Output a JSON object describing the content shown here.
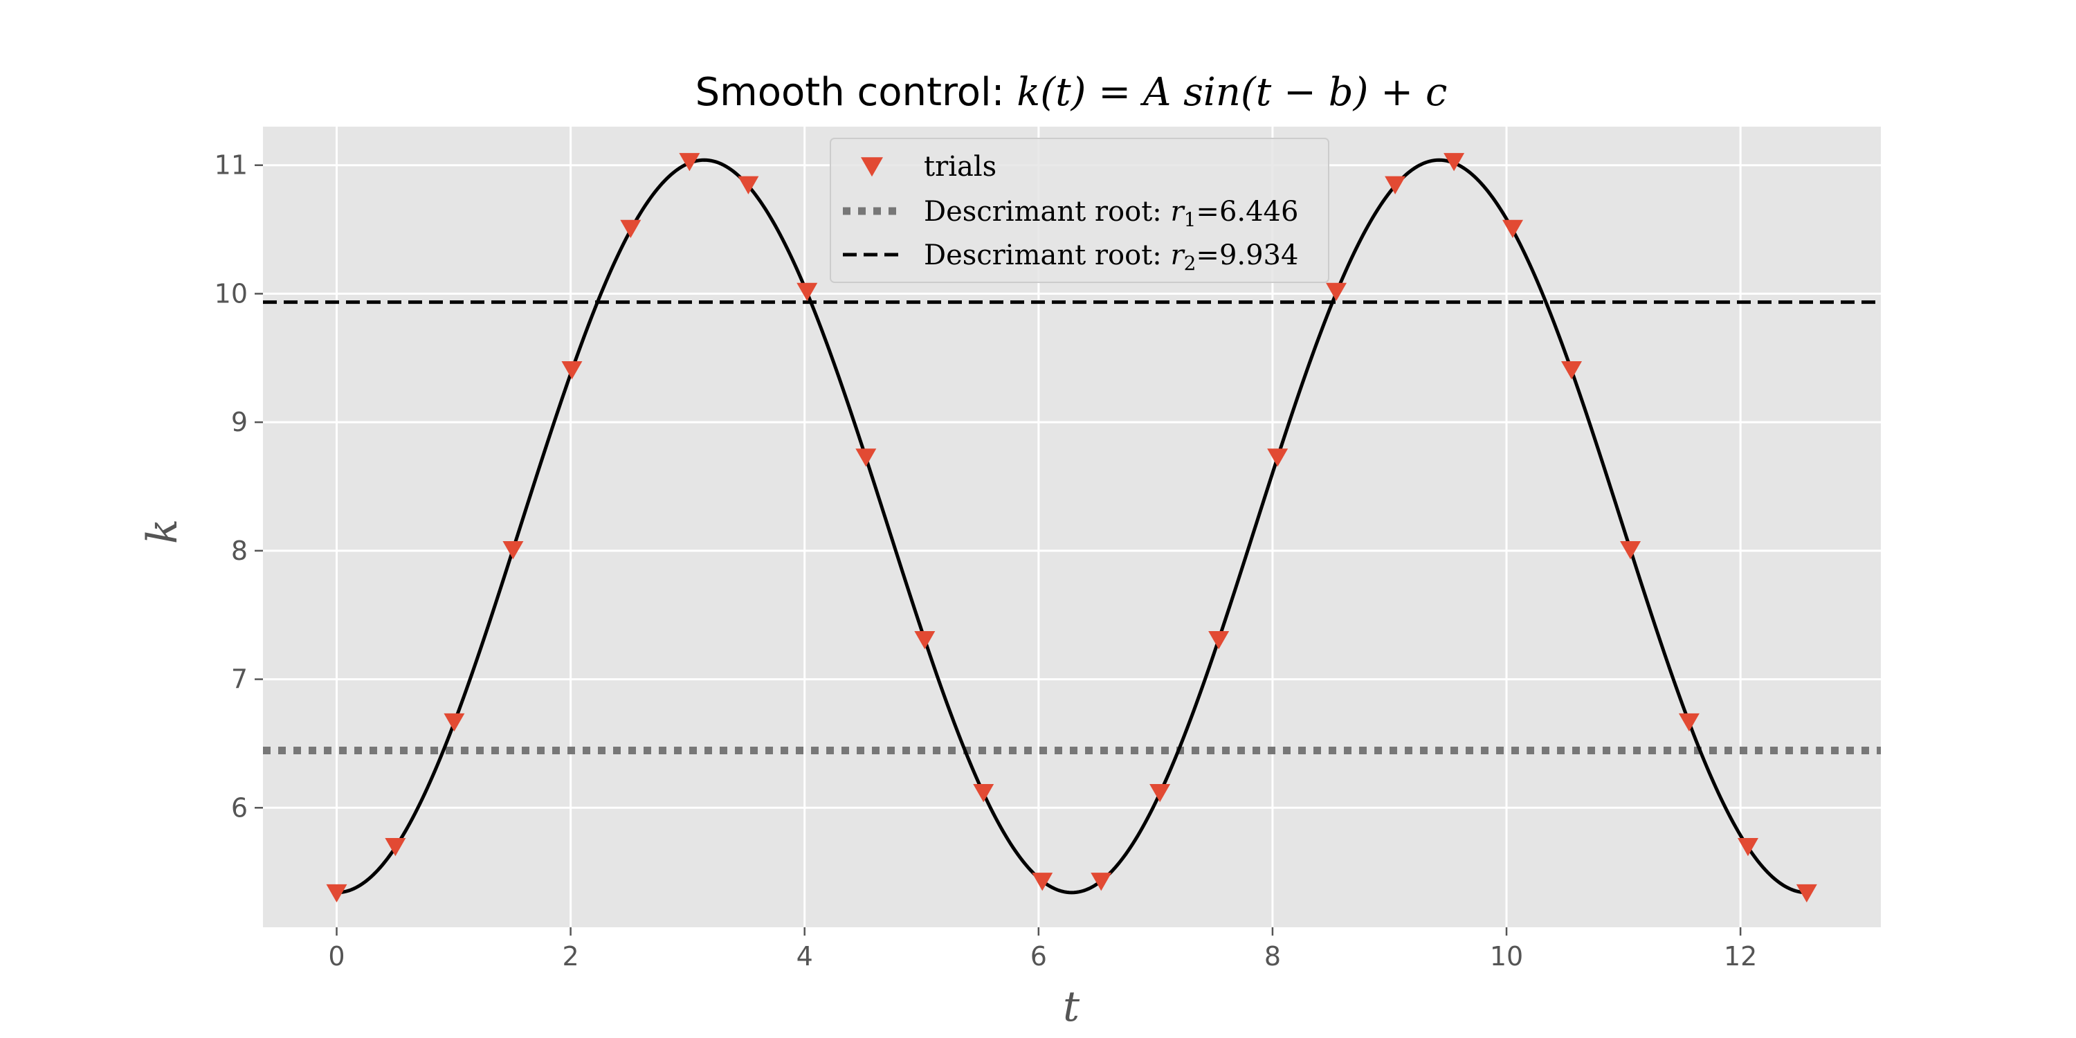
{
  "chart_data": {
    "type": "line",
    "title": {
      "prefix": "Smooth control: ",
      "formula": "k(t) = A sin(t − b) + c"
    },
    "xlabel": "t",
    "ylabel": "k",
    "xlim": [
      -0.63,
      13.2
    ],
    "ylim": [
      5.07,
      11.3
    ],
    "xticks": [
      0,
      2,
      4,
      6,
      8,
      10,
      12
    ],
    "yticks": [
      6,
      7,
      8,
      9,
      10,
      11
    ],
    "grid": true,
    "legend_position": "top-center",
    "curve": {
      "function": "A*sin(t-b)+c",
      "A": 2.85,
      "b": 1.5708,
      "c": 8.19,
      "t_range": [
        0,
        12.566
      ]
    },
    "series": [
      {
        "name": "trials",
        "type": "scatter",
        "marker": "triangle-down",
        "color": "#E24A33",
        "x": [
          0,
          0.502,
          1.005,
          1.508,
          2.011,
          2.513,
          3.016,
          3.519,
          4.021,
          4.524,
          5.027,
          5.529,
          6.032,
          6.535,
          7.037,
          7.54,
          8.043,
          8.545,
          9.048,
          9.551,
          10.053,
          10.556,
          11.059,
          11.561,
          12.064,
          12.566
        ],
        "y": [
          5.34,
          5.7,
          6.67,
          8.01,
          9.41,
          10.51,
          11.03,
          10.85,
          10.02,
          8.73,
          7.31,
          6.12,
          5.43,
          5.43,
          6.12,
          7.31,
          8.73,
          10.02,
          10.85,
          11.03,
          10.51,
          9.41,
          8.01,
          6.67,
          5.7,
          5.34
        ]
      },
      {
        "name": "Descrimant root: r1=6.446",
        "label_parts": {
          "prefix": "Descrimant root: ",
          "var": "r",
          "sub": "1",
          "suffix": "=6.446"
        },
        "type": "hline",
        "value": 6.446,
        "style": "dotted",
        "color": "#777777"
      },
      {
        "name": "Descrimant root: r2=9.934",
        "label_parts": {
          "prefix": "Descrimant root: ",
          "var": "r",
          "sub": "2",
          "suffix": "=9.934"
        },
        "type": "hline",
        "value": 9.934,
        "style": "dashed",
        "color": "#000000"
      }
    ],
    "colors": {
      "background": "#E5E5E5",
      "grid": "#FFFFFF",
      "curve": "#000000"
    }
  }
}
